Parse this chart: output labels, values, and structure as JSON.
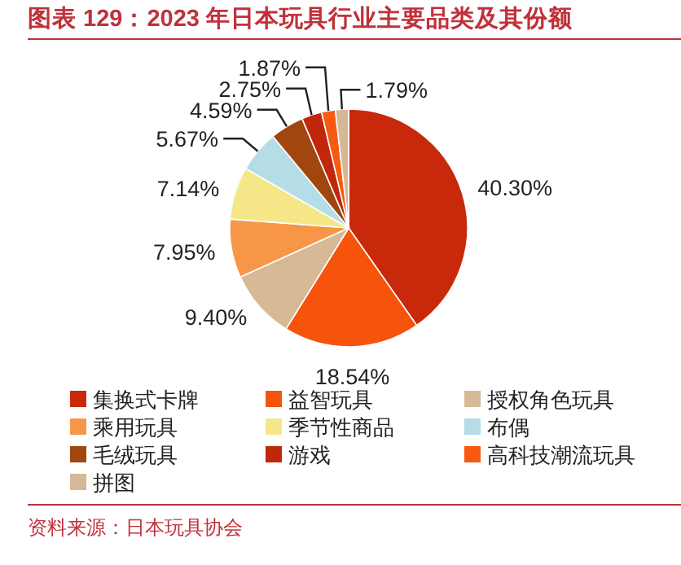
{
  "chart_data": {
    "type": "pie",
    "title": "图表 129：2023 年日本玩具行业主要品类及其份额",
    "categories": [
      "集换式卡牌",
      "益智玩具",
      "授权角色玩具",
      "乘用玩具",
      "季节性商品",
      "布偶",
      "毛绒玩具",
      "游戏",
      "高科技潮流玩具",
      "拼图"
    ],
    "values": [
      40.3,
      18.54,
      9.4,
      7.95,
      7.14,
      5.67,
      4.59,
      2.75,
      1.87,
      1.79
    ],
    "value_labels": [
      "40.30%",
      "18.54%",
      "9.40%",
      "7.95%",
      "7.14%",
      "5.67%",
      "4.59%",
      "2.75%",
      "1.87%",
      "1.79%"
    ],
    "colors": [
      "#c8290a",
      "#f6530d",
      "#d7b995",
      "#f79646",
      "#f5e788",
      "#b4dde8",
      "#a0460e",
      "#c0270b",
      "#f75a10",
      "#d5b896"
    ],
    "legend": "bottom",
    "annotations": [
      "资料来源：日本玩具协会"
    ]
  }
}
